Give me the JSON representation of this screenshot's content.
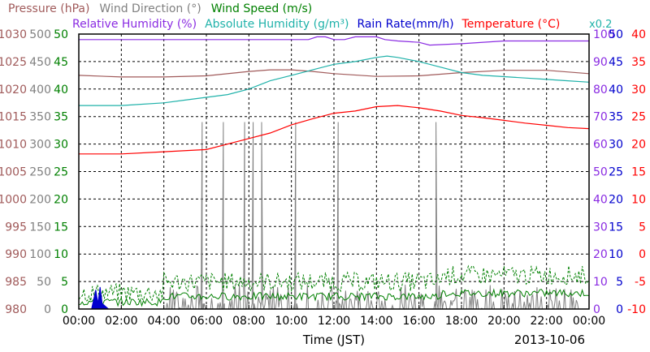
{
  "chart_data": {
    "type": "line",
    "date": "2013-10-06",
    "xlabel": "Time (JST)",
    "x_ticks": [
      "00:00",
      "02:00",
      "04:00",
      "06:00",
      "08:00",
      "10:00",
      "12:00",
      "14:00",
      "16:00",
      "18:00",
      "20:00",
      "22:00",
      "00:00"
    ],
    "x_range_hours": [
      0,
      24
    ],
    "grid": true,
    "legend_line1": [
      {
        "label": "Pressure (hPa)",
        "color": "#a05a5a"
      },
      {
        "label": "Wind Direction (°)",
        "color": "#808080"
      },
      {
        "label": "Wind Speed (m/s)",
        "color": "#008000"
      }
    ],
    "legend_line2": [
      {
        "label": "Relative Humidity (%)",
        "color": "#8a2be2"
      },
      {
        "label": "Absolute Humidity (g/m³)",
        "color": "#20b2aa"
      },
      {
        "label": "Rain Rate(mm/h)",
        "color": "#0000cd"
      },
      {
        "label": "Temperature (°C)",
        "color": "#ff0000"
      }
    ],
    "scale_note": {
      "text": "x0.2",
      "color": "#20b2aa"
    },
    "axes": {
      "pressure": {
        "ticks": [
          980,
          985,
          990,
          995,
          1000,
          1005,
          1010,
          1015,
          1020,
          1025,
          1030
        ],
        "color": "#a05a5a"
      },
      "wind_direction": {
        "ticks": [
          0,
          50,
          100,
          150,
          200,
          250,
          300,
          350,
          400,
          450,
          500
        ],
        "color": "#808080"
      },
      "wind_speed": {
        "ticks": [
          0,
          5,
          10,
          15,
          20,
          25,
          30,
          35,
          40,
          45,
          50
        ],
        "color": "#008000"
      },
      "relative_humidity": {
        "ticks": [
          0,
          10,
          20,
          30,
          40,
          50,
          60,
          70,
          80,
          90,
          100
        ],
        "color": "#8a2be2"
      },
      "rain_rate": {
        "ticks": [
          0,
          5,
          10,
          15,
          20,
          25,
          30,
          35,
          40,
          45,
          50
        ],
        "color": "#0000cd"
      },
      "temperature": {
        "ticks": [
          -10,
          -5,
          0,
          5,
          10,
          15,
          20,
          25,
          30,
          35,
          40
        ],
        "color": "#ff0000"
      }
    },
    "series": [
      {
        "name": "Pressure (hPa)",
        "color": "#a05a5a",
        "axis": "pressure",
        "x": [
          0,
          2,
          4,
          6,
          8,
          9,
          10,
          11,
          12,
          14,
          16,
          18,
          20,
          22,
          24
        ],
        "y": [
          1022.5,
          1022.2,
          1022.2,
          1022.4,
          1023.2,
          1023.5,
          1023.5,
          1023.2,
          1022.8,
          1022.3,
          1022.4,
          1023,
          1023.4,
          1023.4,
          1022.8
        ]
      },
      {
        "name": "Relative Humidity (%)",
        "color": "#8a2be2",
        "axis": "relative_humidity",
        "x": [
          0,
          10,
          10.8,
          11.2,
          11.6,
          12,
          12.5,
          13,
          14,
          14.4,
          15,
          16,
          16.5,
          18,
          20,
          22,
          24
        ],
        "y": [
          98,
          98,
          98,
          99,
          99,
          98,
          98,
          99,
          99,
          98,
          97.5,
          97,
          96,
          96.5,
          97.5,
          97.5,
          97.5
        ]
      },
      {
        "name": "Absolute Humidity (g/m³)",
        "color": "#20b2aa",
        "axis": "relative_humidity",
        "x": [
          0,
          2,
          4,
          5,
          6,
          7,
          8,
          9,
          10,
          11,
          12,
          13,
          14,
          14.5,
          15,
          16,
          17,
          18,
          19,
          20,
          21,
          22,
          23,
          24
        ],
        "y": [
          74,
          74,
          75,
          76,
          77,
          78,
          80,
          83,
          85,
          87,
          89,
          90,
          91.5,
          92,
          91.5,
          90,
          88,
          86,
          85,
          84.5,
          84,
          83.5,
          83,
          82.5
        ]
      },
      {
        "name": "Temperature (°C)",
        "color": "#ff0000",
        "axis": "temperature",
        "x": [
          0,
          2,
          4,
          6,
          8,
          9,
          10,
          11,
          12,
          13,
          14,
          15,
          16,
          17,
          18,
          19,
          20,
          21,
          22,
          23,
          24
        ],
        "y": [
          18.2,
          18.2,
          18.6,
          19,
          21,
          22,
          23.5,
          24.6,
          25.6,
          26,
          26.8,
          27,
          26.6,
          26,
          25.2,
          24.8,
          24.3,
          23.8,
          23.4,
          23,
          22.8
        ]
      },
      {
        "name": "Rain Rate(mm/h)",
        "color": "#0000cd",
        "axis": "rain_rate",
        "x": [
          0,
          0.6,
          0.8,
          0.9,
          1.0,
          1.1,
          1.4,
          24
        ],
        "y": [
          0,
          0,
          3.5,
          1,
          4,
          1,
          0,
          0
        ]
      }
    ],
    "wind_direction_spikes_hours": [
      5.8,
      6.8,
      7.8,
      8.2,
      8.6,
      10.2,
      12.2,
      16.8
    ],
    "wind_direction_spike_value": 340
  }
}
